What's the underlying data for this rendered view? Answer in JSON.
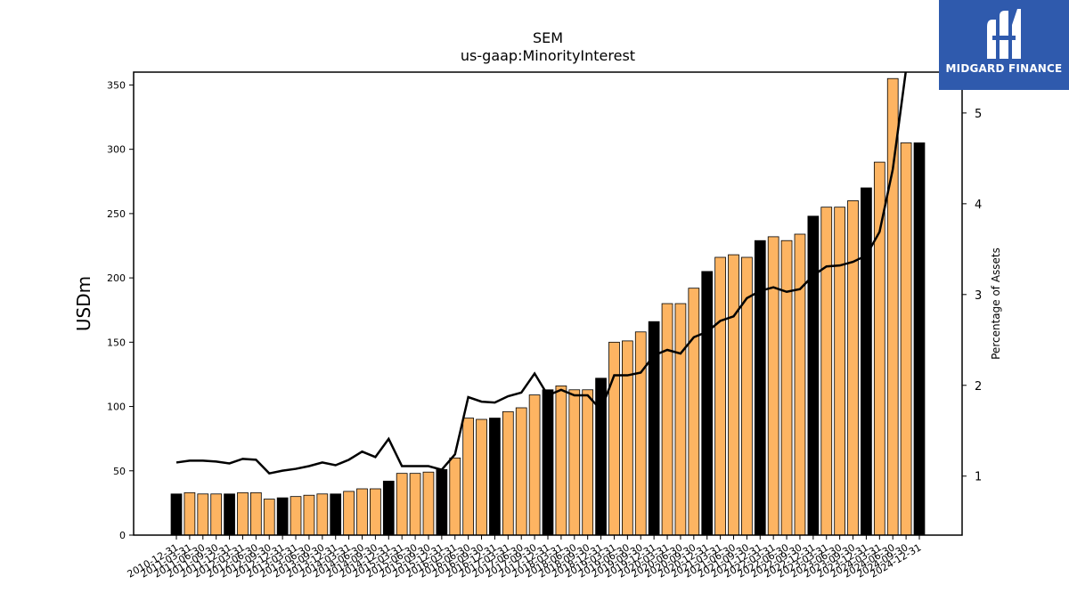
{
  "chart_data": {
    "type": "bar",
    "title": "SEM",
    "subtitle": "us-gaap:MinorityInterest",
    "ylabel": "USDm",
    "y2label": "Percentage of Assets",
    "ylim": [
      0,
      360
    ],
    "y2lim": [
      0.35,
      5.45
    ],
    "yticks": [
      0,
      50,
      100,
      150,
      200,
      250,
      300,
      350
    ],
    "y2ticks": [
      1,
      2,
      3,
      4,
      5
    ],
    "grid": false,
    "colors": {
      "bar": "#fdb462",
      "bar_highlight": "#000000",
      "line": "#000000"
    },
    "categories": [
      "2010-12-31",
      "2011-03-31",
      "2011-06-30",
      "2011-09-30",
      "2011-12-31",
      "2012-03-31",
      "2012-06-30",
      "2012-09-30",
      "2012-12-31",
      "2013-03-31",
      "2013-06-30",
      "2013-09-30",
      "2013-12-31",
      "2014-03-31",
      "2014-06-30",
      "2014-09-30",
      "2014-12-31",
      "2015-03-31",
      "2015-06-30",
      "2015-09-30",
      "2015-12-31",
      "2016-03-31",
      "2016-06-30",
      "2016-09-30",
      "2016-12-31",
      "2017-03-31",
      "2017-06-30",
      "2017-09-30",
      "2017-12-31",
      "2018-03-31",
      "2018-06-30",
      "2018-09-30",
      "2018-12-31",
      "2019-03-31",
      "2019-06-30",
      "2019-09-30",
      "2019-12-31",
      "2020-03-31",
      "2020-06-30",
      "2020-09-30",
      "2020-12-31",
      "2021-03-31",
      "2021-06-30",
      "2021-09-30",
      "2021-12-31",
      "2022-03-31",
      "2022-06-30",
      "2022-09-30",
      "2022-12-31",
      "2023-03-31",
      "2023-06-30",
      "2023-09-30",
      "2023-12-31",
      "2024-03-31",
      "2024-06-30",
      "2024-09-30",
      "2024-12-31"
    ],
    "series": [
      {
        "type": "bar",
        "values": [
          32,
          33,
          32,
          32,
          32,
          33,
          33,
          28,
          29,
          30,
          31,
          32,
          32,
          34,
          36,
          36,
          42,
          48,
          48,
          49,
          51,
          60,
          91,
          90,
          91,
          96,
          99,
          109,
          113,
          116,
          113,
          113,
          122,
          150,
          151,
          158,
          166,
          180,
          180,
          192,
          205,
          216,
          218,
          216,
          229,
          232,
          229,
          234,
          248,
          255,
          255,
          260,
          270,
          290,
          355,
          305,
          305
        ],
        "highlight_every": 4,
        "highlight_offset": 0
      },
      {
        "type": "line",
        "axis": "right",
        "values": [
          1.15,
          1.17,
          1.17,
          1.16,
          1.14,
          1.19,
          1.18,
          1.03,
          1.06,
          1.08,
          1.11,
          1.15,
          1.12,
          1.18,
          1.27,
          1.21,
          1.41,
          1.11,
          1.11,
          1.11,
          1.07,
          1.24,
          1.87,
          1.82,
          1.81,
          1.88,
          1.92,
          2.13,
          1.89,
          1.95,
          1.89,
          1.89,
          1.73,
          2.11,
          2.11,
          2.14,
          2.33,
          2.39,
          2.35,
          2.53,
          2.59,
          2.71,
          2.76,
          2.96,
          3.04,
          3.08,
          3.03,
          3.06,
          3.21,
          3.31,
          3.32,
          3.36,
          3.43,
          3.69,
          4.38,
          5.48,
          5.48
        ]
      }
    ]
  },
  "logo": {
    "name": "midgard-finance-logo",
    "text": "MIDGARD FINANCE"
  }
}
